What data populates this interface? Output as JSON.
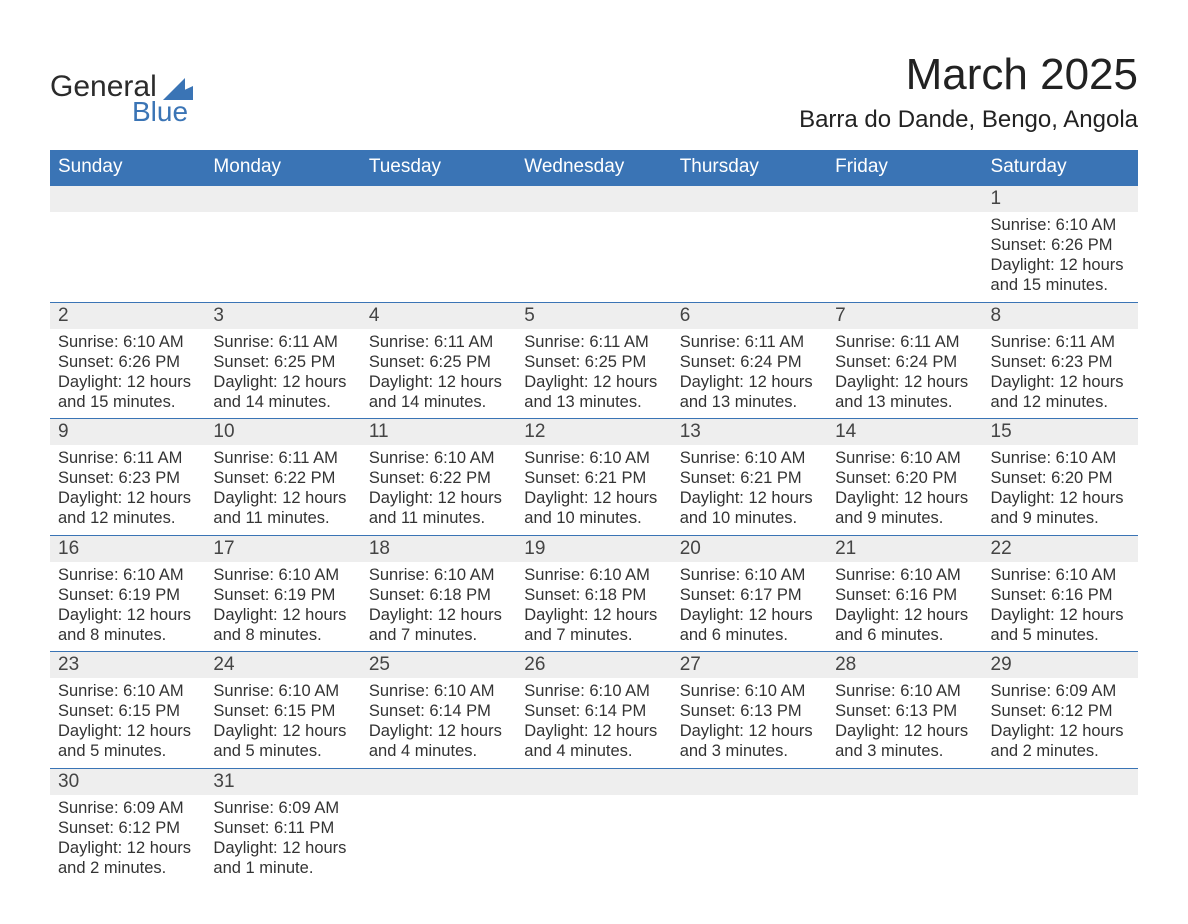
{
  "logo": {
    "text_top": "General",
    "text_bottom": "Blue",
    "flag_color": "#3a74b5"
  },
  "header": {
    "title": "March 2025",
    "location": "Barra do Dande, Bengo, Angola"
  },
  "colors": {
    "header_bg": "#3a74b5",
    "header_fg": "#ffffff",
    "daynum_bg": "#eeeeee",
    "row_divider": "#3a74b5",
    "text": "#333333"
  },
  "typography": {
    "title_fontsize": 44,
    "subtitle_fontsize": 24,
    "dayheader_fontsize": 19,
    "body_fontsize": 16.5
  },
  "layout": {
    "columns": 7,
    "weeks": 6
  },
  "day_headers": [
    "Sunday",
    "Monday",
    "Tuesday",
    "Wednesday",
    "Thursday",
    "Friday",
    "Saturday"
  ],
  "weeks": [
    [
      null,
      null,
      null,
      null,
      null,
      null,
      {
        "n": "1",
        "sr": "Sunrise: 6:10 AM",
        "ss": "Sunset: 6:26 PM",
        "d1": "Daylight: 12 hours",
        "d2": "and 15 minutes."
      }
    ],
    [
      {
        "n": "2",
        "sr": "Sunrise: 6:10 AM",
        "ss": "Sunset: 6:26 PM",
        "d1": "Daylight: 12 hours",
        "d2": "and 15 minutes."
      },
      {
        "n": "3",
        "sr": "Sunrise: 6:11 AM",
        "ss": "Sunset: 6:25 PM",
        "d1": "Daylight: 12 hours",
        "d2": "and 14 minutes."
      },
      {
        "n": "4",
        "sr": "Sunrise: 6:11 AM",
        "ss": "Sunset: 6:25 PM",
        "d1": "Daylight: 12 hours",
        "d2": "and 14 minutes."
      },
      {
        "n": "5",
        "sr": "Sunrise: 6:11 AM",
        "ss": "Sunset: 6:25 PM",
        "d1": "Daylight: 12 hours",
        "d2": "and 13 minutes."
      },
      {
        "n": "6",
        "sr": "Sunrise: 6:11 AM",
        "ss": "Sunset: 6:24 PM",
        "d1": "Daylight: 12 hours",
        "d2": "and 13 minutes."
      },
      {
        "n": "7",
        "sr": "Sunrise: 6:11 AM",
        "ss": "Sunset: 6:24 PM",
        "d1": "Daylight: 12 hours",
        "d2": "and 13 minutes."
      },
      {
        "n": "8",
        "sr": "Sunrise: 6:11 AM",
        "ss": "Sunset: 6:23 PM",
        "d1": "Daylight: 12 hours",
        "d2": "and 12 minutes."
      }
    ],
    [
      {
        "n": "9",
        "sr": "Sunrise: 6:11 AM",
        "ss": "Sunset: 6:23 PM",
        "d1": "Daylight: 12 hours",
        "d2": "and 12 minutes."
      },
      {
        "n": "10",
        "sr": "Sunrise: 6:11 AM",
        "ss": "Sunset: 6:22 PM",
        "d1": "Daylight: 12 hours",
        "d2": "and 11 minutes."
      },
      {
        "n": "11",
        "sr": "Sunrise: 6:10 AM",
        "ss": "Sunset: 6:22 PM",
        "d1": "Daylight: 12 hours",
        "d2": "and 11 minutes."
      },
      {
        "n": "12",
        "sr": "Sunrise: 6:10 AM",
        "ss": "Sunset: 6:21 PM",
        "d1": "Daylight: 12 hours",
        "d2": "and 10 minutes."
      },
      {
        "n": "13",
        "sr": "Sunrise: 6:10 AM",
        "ss": "Sunset: 6:21 PM",
        "d1": "Daylight: 12 hours",
        "d2": "and 10 minutes."
      },
      {
        "n": "14",
        "sr": "Sunrise: 6:10 AM",
        "ss": "Sunset: 6:20 PM",
        "d1": "Daylight: 12 hours",
        "d2": "and 9 minutes."
      },
      {
        "n": "15",
        "sr": "Sunrise: 6:10 AM",
        "ss": "Sunset: 6:20 PM",
        "d1": "Daylight: 12 hours",
        "d2": "and 9 minutes."
      }
    ],
    [
      {
        "n": "16",
        "sr": "Sunrise: 6:10 AM",
        "ss": "Sunset: 6:19 PM",
        "d1": "Daylight: 12 hours",
        "d2": "and 8 minutes."
      },
      {
        "n": "17",
        "sr": "Sunrise: 6:10 AM",
        "ss": "Sunset: 6:19 PM",
        "d1": "Daylight: 12 hours",
        "d2": "and 8 minutes."
      },
      {
        "n": "18",
        "sr": "Sunrise: 6:10 AM",
        "ss": "Sunset: 6:18 PM",
        "d1": "Daylight: 12 hours",
        "d2": "and 7 minutes."
      },
      {
        "n": "19",
        "sr": "Sunrise: 6:10 AM",
        "ss": "Sunset: 6:18 PM",
        "d1": "Daylight: 12 hours",
        "d2": "and 7 minutes."
      },
      {
        "n": "20",
        "sr": "Sunrise: 6:10 AM",
        "ss": "Sunset: 6:17 PM",
        "d1": "Daylight: 12 hours",
        "d2": "and 6 minutes."
      },
      {
        "n": "21",
        "sr": "Sunrise: 6:10 AM",
        "ss": "Sunset: 6:16 PM",
        "d1": "Daylight: 12 hours",
        "d2": "and 6 minutes."
      },
      {
        "n": "22",
        "sr": "Sunrise: 6:10 AM",
        "ss": "Sunset: 6:16 PM",
        "d1": "Daylight: 12 hours",
        "d2": "and 5 minutes."
      }
    ],
    [
      {
        "n": "23",
        "sr": "Sunrise: 6:10 AM",
        "ss": "Sunset: 6:15 PM",
        "d1": "Daylight: 12 hours",
        "d2": "and 5 minutes."
      },
      {
        "n": "24",
        "sr": "Sunrise: 6:10 AM",
        "ss": "Sunset: 6:15 PM",
        "d1": "Daylight: 12 hours",
        "d2": "and 5 minutes."
      },
      {
        "n": "25",
        "sr": "Sunrise: 6:10 AM",
        "ss": "Sunset: 6:14 PM",
        "d1": "Daylight: 12 hours",
        "d2": "and 4 minutes."
      },
      {
        "n": "26",
        "sr": "Sunrise: 6:10 AM",
        "ss": "Sunset: 6:14 PM",
        "d1": "Daylight: 12 hours",
        "d2": "and 4 minutes."
      },
      {
        "n": "27",
        "sr": "Sunrise: 6:10 AM",
        "ss": "Sunset: 6:13 PM",
        "d1": "Daylight: 12 hours",
        "d2": "and 3 minutes."
      },
      {
        "n": "28",
        "sr": "Sunrise: 6:10 AM",
        "ss": "Sunset: 6:13 PM",
        "d1": "Daylight: 12 hours",
        "d2": "and 3 minutes."
      },
      {
        "n": "29",
        "sr": "Sunrise: 6:09 AM",
        "ss": "Sunset: 6:12 PM",
        "d1": "Daylight: 12 hours",
        "d2": "and 2 minutes."
      }
    ],
    [
      {
        "n": "30",
        "sr": "Sunrise: 6:09 AM",
        "ss": "Sunset: 6:12 PM",
        "d1": "Daylight: 12 hours",
        "d2": "and 2 minutes."
      },
      {
        "n": "31",
        "sr": "Sunrise: 6:09 AM",
        "ss": "Sunset: 6:11 PM",
        "d1": "Daylight: 12 hours",
        "d2": "and 1 minute."
      },
      null,
      null,
      null,
      null,
      null
    ]
  ]
}
